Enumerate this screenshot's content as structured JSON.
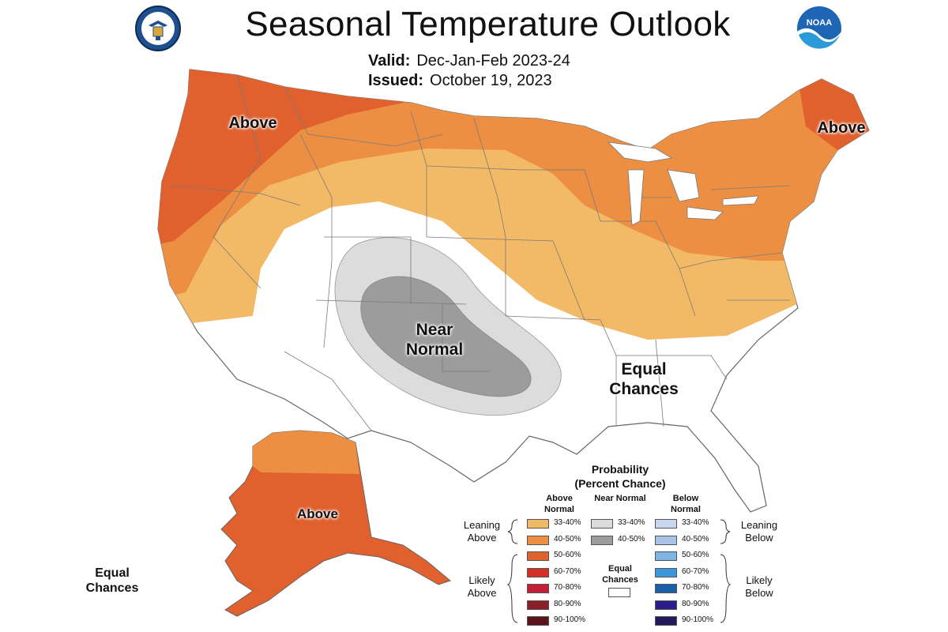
{
  "header": {
    "title": "Seasonal Temperature Outlook",
    "valid_label": "Valid:",
    "valid_value": "Dec-Jan-Feb 2023-24",
    "issued_label": "Issued:",
    "issued_value": "October 19, 2023"
  },
  "logos": {
    "left": "department-of-commerce-seal",
    "right": "noaa-logo",
    "right_text": "NOAA"
  },
  "map_labels": {
    "above_northwest": "Above",
    "above_northeast": "Above",
    "near_normal": "Near Normal",
    "equal_chances_southeast": "Equal Chances",
    "above_alaska": "Above",
    "equal_chances_alaska": "Equal Chances"
  },
  "colors": {
    "above_33_40": "#F2B966",
    "above_40_50": "#EC8F42",
    "above_50_60": "#E0602E",
    "above_60_70": "#D33028",
    "above_70_80": "#C41F3A",
    "above_80_90": "#8C1E2A",
    "above_90_100": "#5C141C",
    "near_33_40": "#DCDCDC",
    "near_40_50": "#9C9C9C",
    "below_33_40": "#C9D8EE",
    "below_40_50": "#A9C4E6",
    "below_50_60": "#7EB3E4",
    "below_60_70": "#3C98DA",
    "below_70_80": "#1C5FA8",
    "below_80_90": "#2B1C8C",
    "below_90_100": "#23185A",
    "equal_chances": "#FFFFFF"
  },
  "legend": {
    "title": "Probability",
    "subtitle": "(Percent Chance)",
    "above_header": "Above Normal",
    "near_header": "Near Normal",
    "below_header": "Below Normal",
    "leaning_above": "Leaning Above",
    "likely_above": "Likely Above",
    "leaning_below": "Leaning Below",
    "likely_below": "Likely Below",
    "equal_chances": "Equal Chances",
    "above_items": [
      "33-40%",
      "40-50%",
      "50-60%",
      "60-70%",
      "70-80%",
      "80-90%",
      "90-100%"
    ],
    "near_items": [
      "33-40%",
      "40-50%"
    ],
    "below_items": [
      "33-40%",
      "40-50%",
      "50-60%",
      "60-70%",
      "70-80%",
      "80-90%",
      "90-100%"
    ]
  }
}
